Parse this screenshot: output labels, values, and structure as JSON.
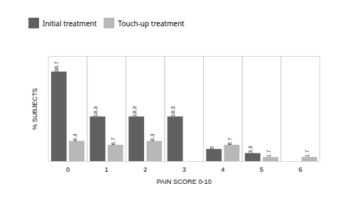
{
  "chart_data": {
    "type": "bar",
    "categories": [
      "0",
      "1",
      "2",
      "3",
      "4",
      "5",
      "6"
    ],
    "series": [
      {
        "name": "Initial treatment",
        "color": "#606060",
        "values": [
          36.7,
          18.3,
          18.3,
          18.3,
          5.0,
          3.3,
          0.0
        ],
        "value_labels": [
          "36.7",
          "18.3",
          "18.3",
          "18.3",
          "5",
          "3.3",
          null
        ]
      },
      {
        "name": "Touch-up treatment",
        "color": "#b8b8b8",
        "values": [
          8.3,
          6.7,
          8.3,
          0.0,
          6.7,
          1.7,
          1.7
        ],
        "value_labels": [
          "8.3",
          "6.7",
          "8.3",
          null,
          "6.7",
          "1.7",
          "1.7"
        ]
      }
    ],
    "xlabel": "PAIN SCORE 0-10",
    "ylabel": "% SUBJECTS",
    "ylim": [
      0,
      43
    ],
    "yticks": [],
    "tick_labels": "x",
    "data_labels": true,
    "legend": "top",
    "grid": false
  }
}
